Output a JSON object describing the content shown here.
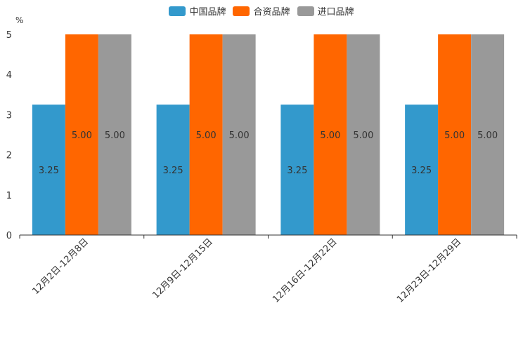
{
  "chart_data": {
    "type": "bar",
    "unit": "%",
    "categories": [
      "12月2日-12月8日",
      "12月9日-12月15日",
      "12月16日-12月22日",
      "12月23日-12月29日"
    ],
    "series": [
      {
        "name": "中国品牌",
        "color": "#3399cc",
        "values": [
          3.25,
          3.25,
          3.25,
          3.25
        ],
        "labels": [
          "3.25",
          "3.25",
          "3.25",
          "3.25"
        ]
      },
      {
        "name": "合资品牌",
        "color": "#ff6600",
        "values": [
          5.0,
          5.0,
          5.0,
          5.0
        ],
        "labels": [
          "5.00",
          "5.00",
          "5.00",
          "5.00"
        ]
      },
      {
        "name": "进口品牌",
        "color": "#999999",
        "values": [
          5.0,
          5.0,
          5.0,
          5.0
        ],
        "labels": [
          "5.00",
          "5.00",
          "5.00",
          "5.00"
        ]
      }
    ],
    "ylim": [
      0,
      5
    ],
    "yticks": [
      "0",
      "1",
      "2",
      "3",
      "4",
      "5"
    ],
    "legend_position": "top-center"
  }
}
